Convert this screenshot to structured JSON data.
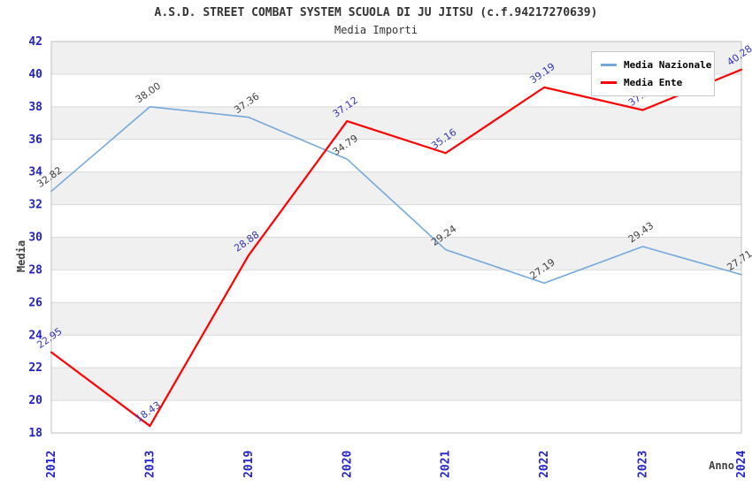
{
  "title": "A.S.D. STREET COMBAT SYSTEM SCUOLA DI JU JITSU (c.f.94217270639)",
  "subtitle": "Media Importi",
  "chart_data": {
    "type": "line",
    "title": "A.S.D. STREET COMBAT SYSTEM SCUOLA DI JU JITSU (c.f.94217270639)",
    "subtitle": "Media Importi",
    "categories": [
      "2012",
      "2013",
      "2019",
      "2020",
      "2021",
      "2022",
      "2023",
      "2024"
    ],
    "series": [
      {
        "name": "Media Nazionale",
        "color": "#74A9DC",
        "label_color": "#404040",
        "values": [
          32.82,
          38.0,
          37.36,
          34.79,
          29.24,
          27.19,
          29.43,
          27.71
        ]
      },
      {
        "name": "Media Ente",
        "color": "#FF0000",
        "label_color": "#3333BB",
        "values": [
          22.95,
          18.43,
          28.88,
          37.12,
          35.16,
          39.19,
          37.8,
          40.28
        ]
      }
    ],
    "xlabel": "Anno",
    "ylabel": "Media",
    "ylim": [
      18,
      42
    ],
    "ytick_step": 2,
    "grid": true,
    "legend_position": "top-right",
    "colors": {
      "band_alt": "#F0F0F0",
      "band_main": "#FFFFFF",
      "gridline": "#D9D9D9",
      "plot_border": "#C0C0C0",
      "tick_label": "#2222CC",
      "axis_title": "#404040",
      "title_text": "#333333"
    }
  }
}
